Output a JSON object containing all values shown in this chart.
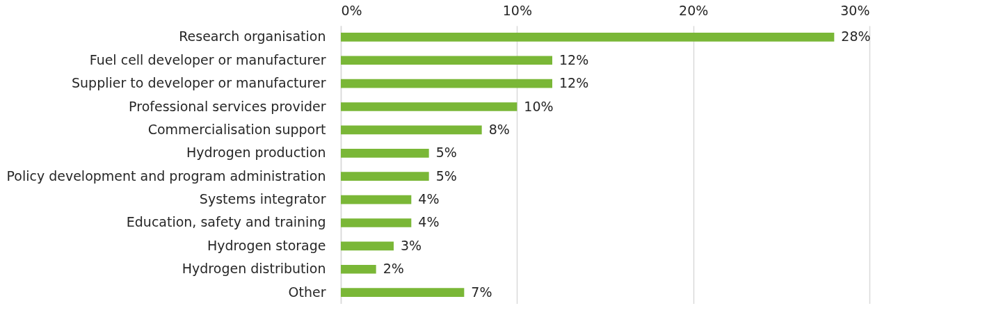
{
  "chart_data": {
    "type": "bar",
    "orientation": "horizontal",
    "categories": [
      "Research organisation",
      "Fuel cell developer or manufacturer",
      "Supplier to developer or manufacturer",
      "Professional services provider",
      "Commercialisation support",
      "Hydrogen production",
      "Policy development and program administration",
      "Systems integrator",
      "Education, safety and training",
      "Hydrogen storage",
      "Hydrogen distribution",
      "Other"
    ],
    "values": [
      28,
      12,
      12,
      10,
      8,
      5,
      5,
      4,
      4,
      3,
      2,
      7
    ],
    "value_labels": [
      "28%",
      "12%",
      "12%",
      "10%",
      "8%",
      "5%",
      "5%",
      "4%",
      "4%",
      "3%",
      "2%",
      "7%"
    ],
    "color": "#7ab737",
    "xlim": [
      0,
      30
    ],
    "xticks": [
      {
        "value": 0,
        "label": "0%"
      },
      {
        "value": 10,
        "label": "10%"
      },
      {
        "value": 20,
        "label": "20%"
      },
      {
        "value": 30,
        "label": "30%"
      }
    ],
    "grid": "x"
  }
}
